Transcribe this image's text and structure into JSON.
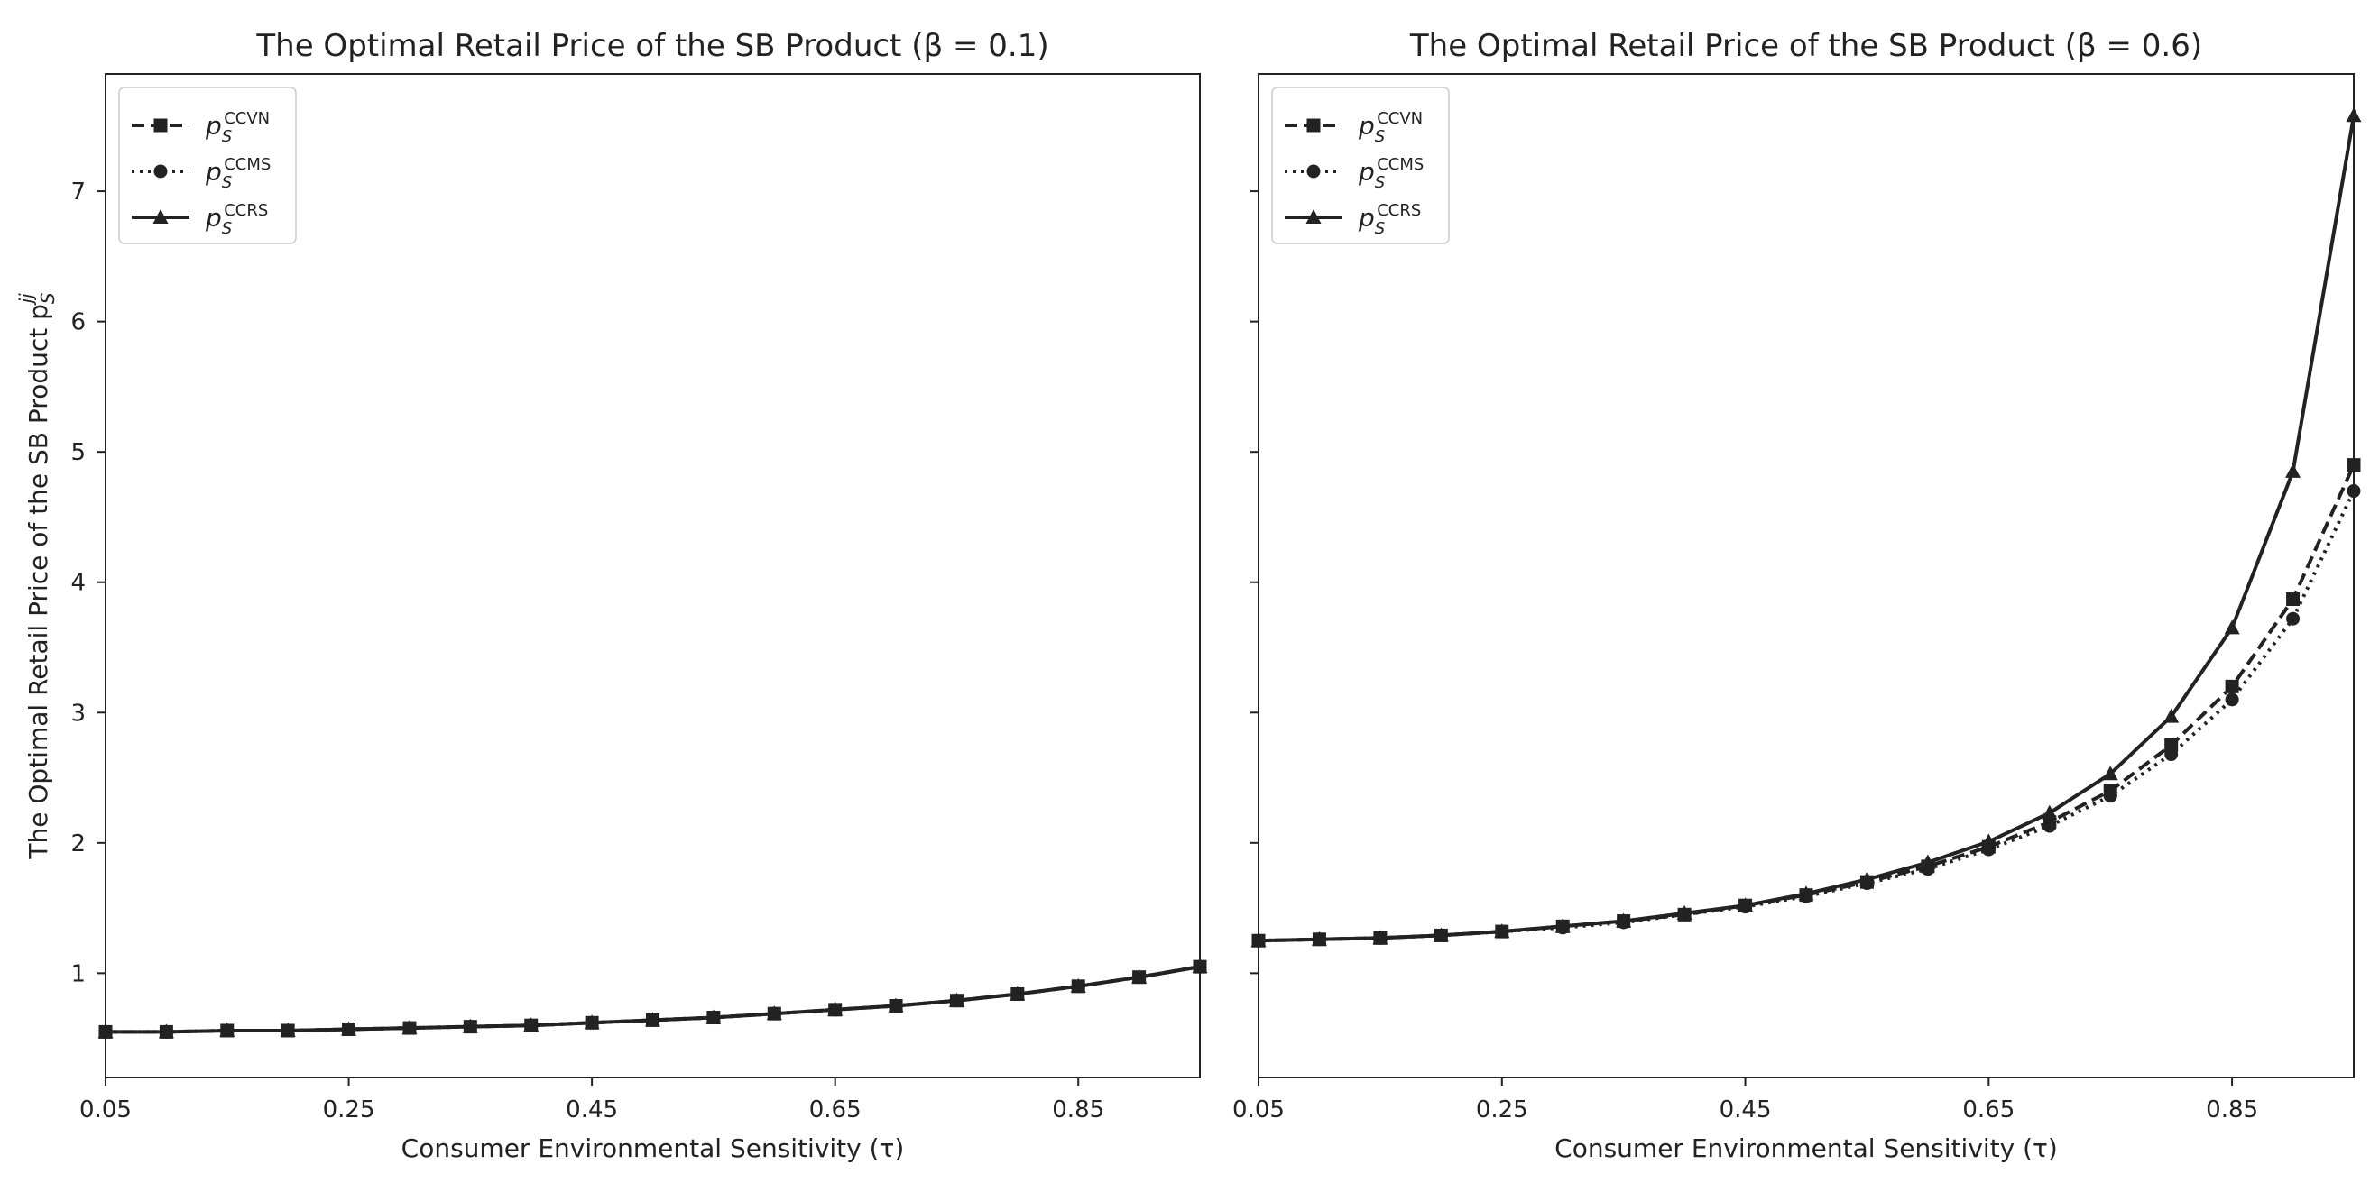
{
  "chart_data": [
    {
      "type": "line",
      "title": "The Optimal Retail Price of the SB Product (β = 0.1)",
      "xlabel": "Consumer Environmental Sensitivity (τ)",
      "ylabel": "The Optimal Retail Price of the SB Product p",
      "ylabel_sub": "S",
      "ylabel_sup": "jj",
      "xlim": [
        0.05,
        0.95
      ],
      "ylim": [
        0.2,
        7.9
      ],
      "xticks": [
        "0.05",
        "0.25",
        "0.45",
        "0.65",
        "0.85"
      ],
      "yticks": [
        "1",
        "2",
        "3",
        "4",
        "5",
        "6",
        "7"
      ],
      "legend_loc": "upper-left",
      "x": [
        0.05,
        0.1,
        0.15,
        0.2,
        0.25,
        0.3,
        0.35,
        0.4,
        0.45,
        0.5,
        0.55,
        0.6,
        0.65,
        0.7,
        0.75,
        0.8,
        0.85,
        0.9,
        0.95
      ],
      "series": [
        {
          "name": "CCVN",
          "base": "p",
          "sub": "S",
          "sup": "CCVN",
          "style": "dashed",
          "marker": "square",
          "values": [
            0.55,
            0.55,
            0.56,
            0.56,
            0.57,
            0.58,
            0.59,
            0.6,
            0.62,
            0.64,
            0.66,
            0.69,
            0.72,
            0.75,
            0.79,
            0.84,
            0.9,
            0.97,
            1.05
          ]
        },
        {
          "name": "CCMS",
          "base": "p",
          "sub": "S",
          "sup": "CCMS",
          "style": "dotted",
          "marker": "circle",
          "values": [
            0.55,
            0.55,
            0.56,
            0.56,
            0.57,
            0.58,
            0.59,
            0.6,
            0.62,
            0.64,
            0.66,
            0.69,
            0.72,
            0.75,
            0.79,
            0.84,
            0.9,
            0.97,
            1.05
          ]
        },
        {
          "name": "CCRS",
          "base": "p",
          "sub": "S",
          "sup": "CCRS",
          "style": "solid",
          "marker": "triangle",
          "values": [
            0.55,
            0.55,
            0.56,
            0.56,
            0.57,
            0.58,
            0.59,
            0.6,
            0.62,
            0.64,
            0.66,
            0.69,
            0.72,
            0.75,
            0.79,
            0.84,
            0.9,
            0.97,
            1.05
          ]
        }
      ]
    },
    {
      "type": "line",
      "title": "The Optimal Retail Price of the SB Product (β = 0.6)",
      "xlabel": "Consumer Environmental Sensitivity (τ)",
      "xlim": [
        0.05,
        0.95
      ],
      "ylim": [
        0.2,
        7.9
      ],
      "xticks": [
        "0.05",
        "0.25",
        "0.45",
        "0.65",
        "0.85"
      ],
      "legend_loc": "upper-left",
      "x": [
        0.05,
        0.1,
        0.15,
        0.2,
        0.25,
        0.3,
        0.35,
        0.4,
        0.45,
        0.5,
        0.55,
        0.6,
        0.65,
        0.7,
        0.75,
        0.8,
        0.85,
        0.9,
        0.95
      ],
      "series": [
        {
          "name": "CCVN",
          "base": "p",
          "sub": "S",
          "sup": "CCVN",
          "style": "dashed",
          "marker": "square",
          "values": [
            1.25,
            1.26,
            1.27,
            1.29,
            1.32,
            1.36,
            1.4,
            1.45,
            1.52,
            1.6,
            1.7,
            1.82,
            1.97,
            2.16,
            2.4,
            2.75,
            3.2,
            3.87,
            4.9
          ]
        },
        {
          "name": "CCMS",
          "base": "p",
          "sub": "S",
          "sup": "CCMS",
          "style": "dotted",
          "marker": "circle",
          "values": [
            1.25,
            1.26,
            1.27,
            1.29,
            1.32,
            1.35,
            1.39,
            1.45,
            1.51,
            1.59,
            1.69,
            1.8,
            1.95,
            2.13,
            2.36,
            2.68,
            3.1,
            3.72,
            4.7
          ]
        },
        {
          "name": "CCRS",
          "base": "p",
          "sub": "S",
          "sup": "CCRS",
          "style": "solid",
          "marker": "triangle",
          "values": [
            1.25,
            1.26,
            1.27,
            1.29,
            1.32,
            1.36,
            1.4,
            1.46,
            1.52,
            1.61,
            1.72,
            1.85,
            2.01,
            2.23,
            2.53,
            2.97,
            3.65,
            4.85,
            7.58
          ]
        }
      ]
    }
  ]
}
